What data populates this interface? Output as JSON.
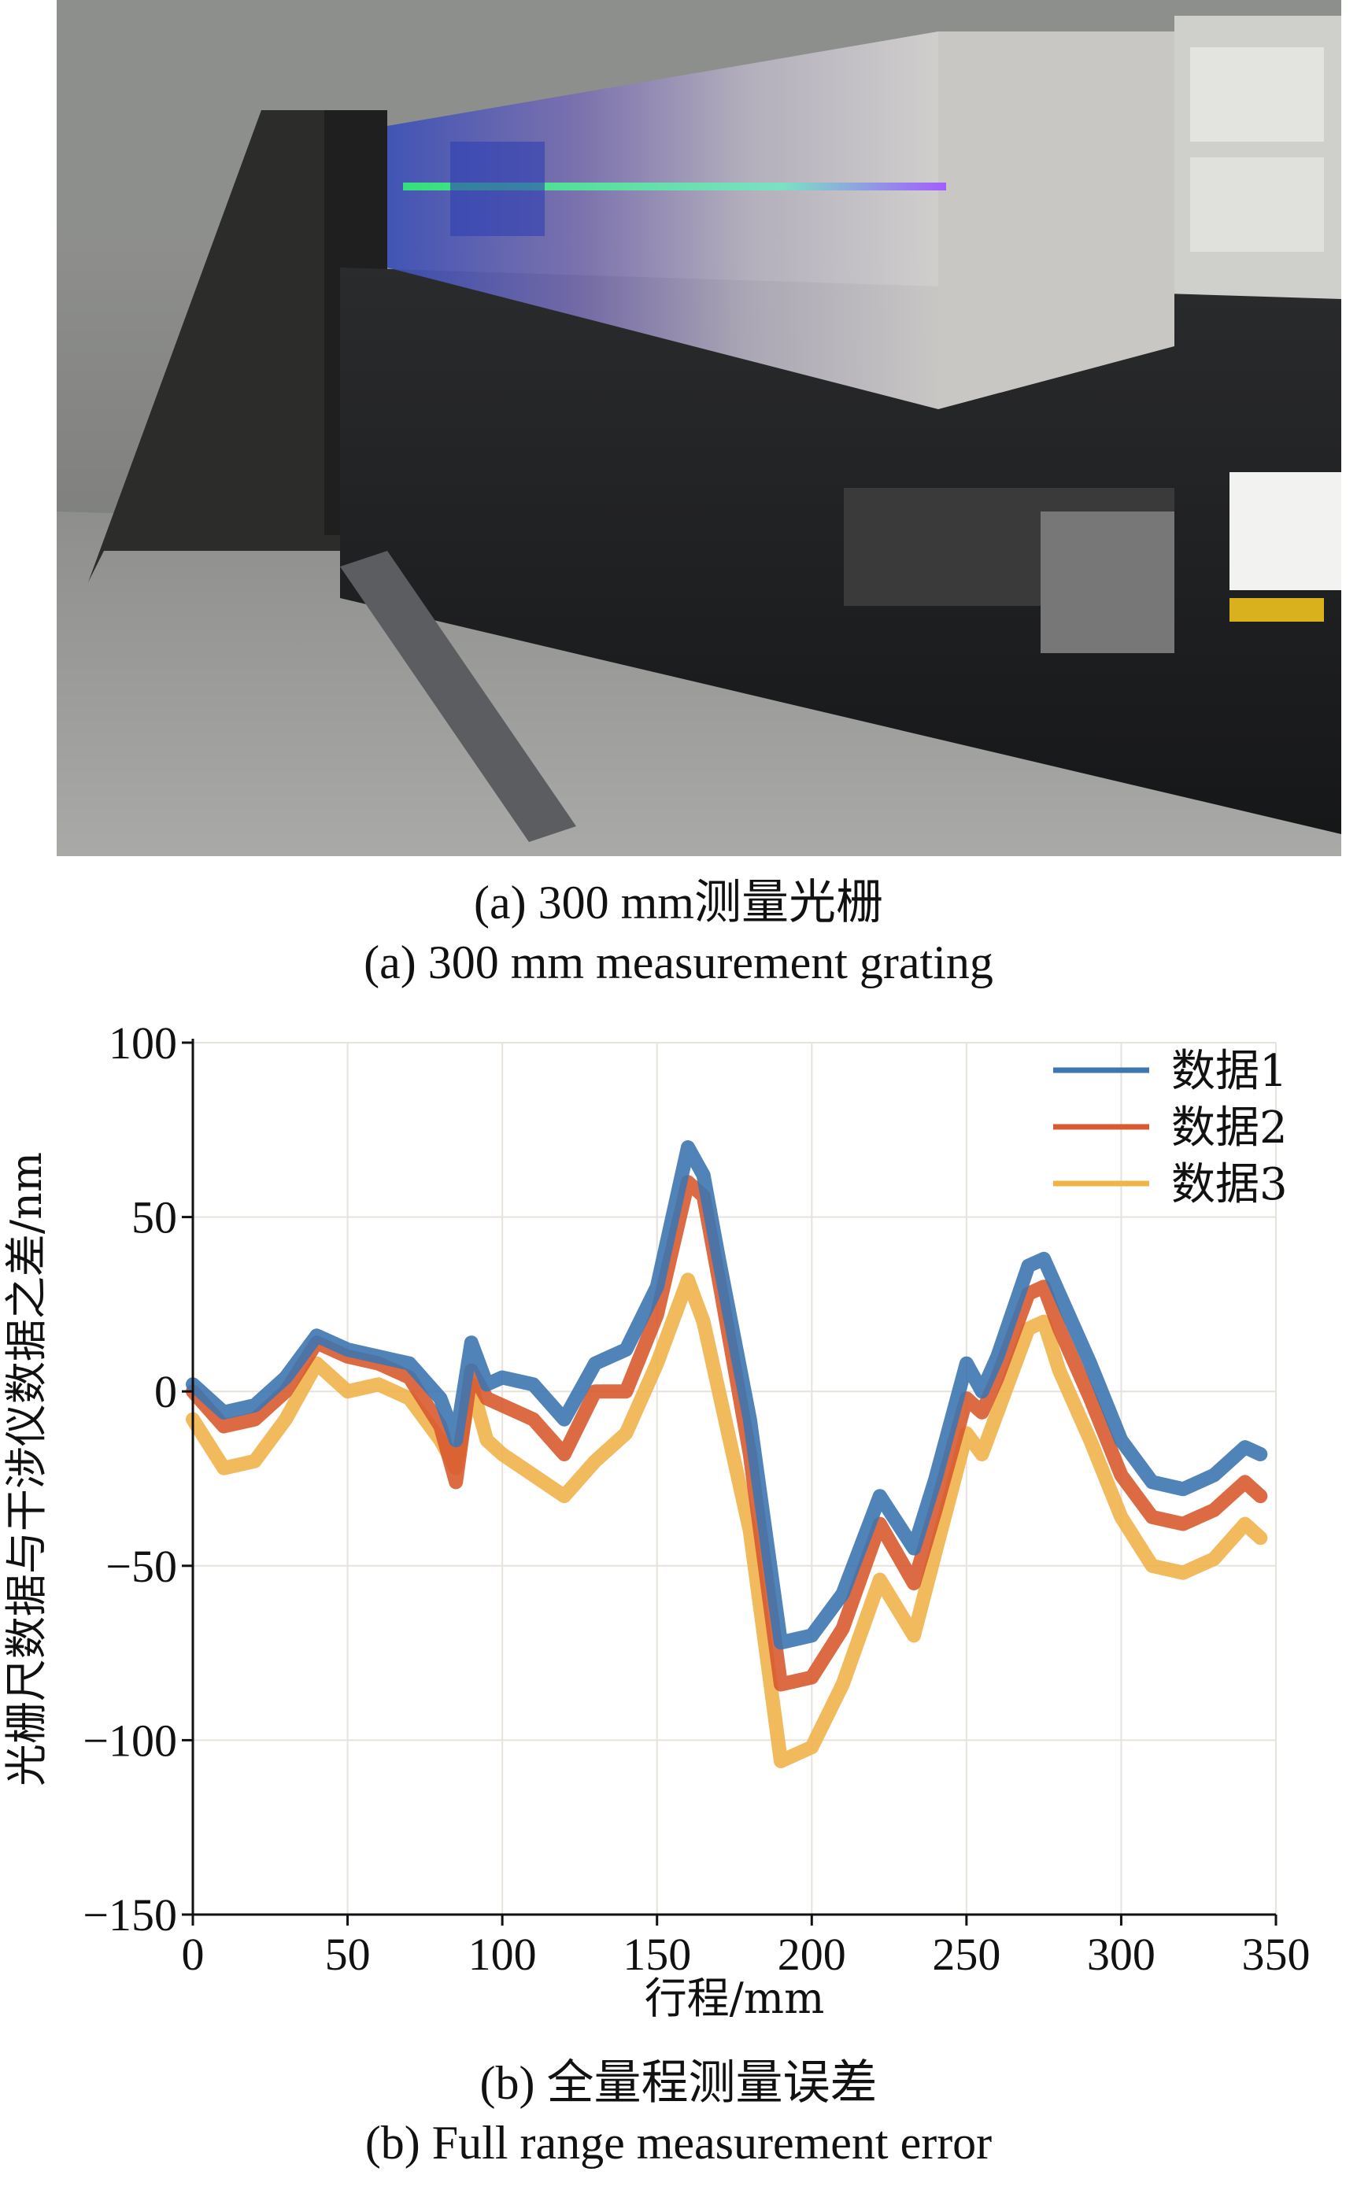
{
  "figure_a": {
    "caption_cn": "(a) 300 mm测量光栅",
    "caption_en": "(a) 300 mm measurement grating"
  },
  "figure_b": {
    "caption_cn": "(b) 全量程测量误差",
    "caption_en": "(b) Full range measurement error"
  },
  "colors": {
    "series1": "#3d76b0",
    "series2": "#d85a2f",
    "series3": "#f0b34a",
    "grid": "#e6e2dc"
  },
  "chart_data": {
    "type": "line",
    "title": "",
    "xlabel": "行程/mm",
    "ylabel": "光栅尺数据与干涉仪数据之差/nm",
    "xlim": [
      0,
      350
    ],
    "ylim": [
      -150,
      100
    ],
    "xticks": [
      0,
      50,
      100,
      150,
      200,
      250,
      300,
      350
    ],
    "yticks": [
      100,
      50,
      0,
      -50,
      -100,
      -150
    ],
    "ytick_labels": [
      "100",
      "50",
      "0",
      "−50",
      "−100",
      "−150"
    ],
    "grid": true,
    "legend_position": "top-right",
    "x": [
      0,
      10,
      20,
      30,
      40,
      50,
      60,
      70,
      80,
      85,
      90,
      95,
      100,
      110,
      120,
      130,
      140,
      150,
      160,
      165,
      170,
      180,
      190,
      200,
      210,
      222,
      233,
      240,
      250,
      255,
      260,
      270,
      275,
      280,
      290,
      300,
      310,
      320,
      330,
      340,
      345
    ],
    "series": [
      {
        "name": "数据1",
        "values": [
          2,
          -6,
          -4,
          4,
          16,
          12,
          10,
          8,
          -2,
          -14,
          14,
          2,
          4,
          2,
          -8,
          8,
          12,
          30,
          70,
          62,
          38,
          -8,
          -72,
          -70,
          -58,
          -30,
          -45,
          -25,
          8,
          0,
          10,
          36,
          38,
          28,
          8,
          -14,
          -26,
          -28,
          -24,
          -16,
          -18
        ]
      },
      {
        "name": "数据2",
        "values": [
          0,
          -10,
          -8,
          0,
          14,
          10,
          8,
          4,
          -10,
          -26,
          6,
          -2,
          -4,
          -8,
          -18,
          0,
          0,
          22,
          60,
          56,
          32,
          -18,
          -84,
          -82,
          -68,
          -38,
          -55,
          -34,
          -2,
          -6,
          4,
          28,
          30,
          18,
          -2,
          -24,
          -36,
          -38,
          -34,
          -26,
          -30
        ]
      },
      {
        "name": "数据3",
        "values": [
          -8,
          -22,
          -20,
          -8,
          8,
          0,
          2,
          -2,
          -14,
          -22,
          2,
          -14,
          -18,
          -24,
          -30,
          -20,
          -12,
          8,
          32,
          20,
          0,
          -40,
          -106,
          -102,
          -84,
          -54,
          -70,
          -46,
          -12,
          -18,
          -6,
          18,
          20,
          6,
          -14,
          -36,
          -50,
          -52,
          -48,
          -38,
          -42
        ]
      }
    ]
  }
}
